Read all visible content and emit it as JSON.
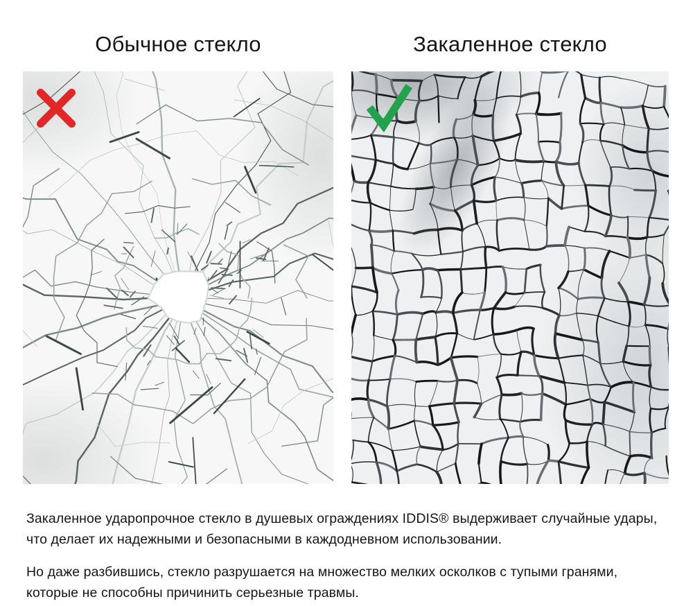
{
  "comparison": {
    "left": {
      "title": "Обычное стекло",
      "icon": "cross-icon",
      "color": "#e02828"
    },
    "right": {
      "title": "Закаленное стекло",
      "icon": "check-icon",
      "color": "#23a24d"
    }
  },
  "description": {
    "paragraph1": "Закаленное ударопрочное стекло в душевых ограждениях IDDIS® выдерживает случайные удары, что делает их надежными и безопасными в каждодневном использовании.",
    "paragraph2": "Но даже разбившись, стекло разрушается на множество мелких осколков с тупыми гранями, которые не способны причинить серьезные травмы."
  }
}
